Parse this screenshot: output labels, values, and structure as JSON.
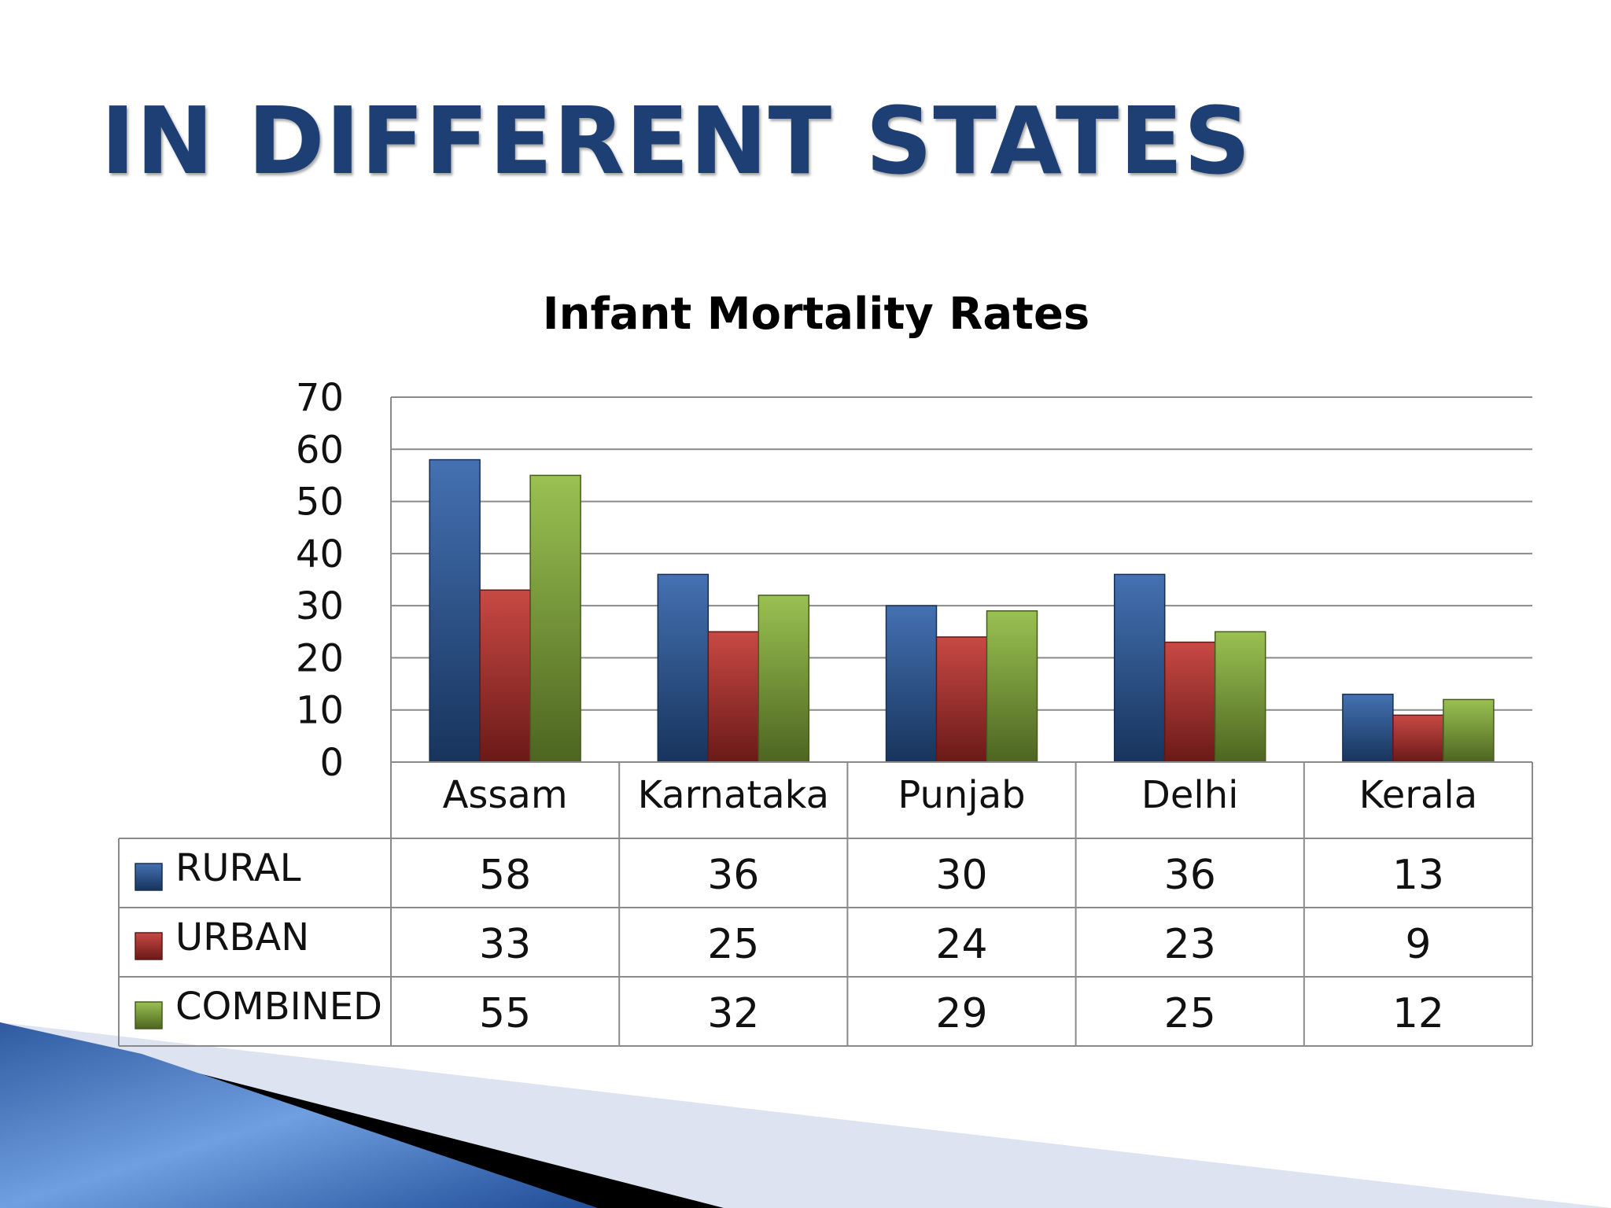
{
  "slide": {
    "title": "IN DIFFERENT STATES"
  },
  "chart_data": {
    "type": "bar",
    "title": "Infant Mortality Rates",
    "xlabel": "",
    "ylabel": "",
    "ylim": [
      0,
      70
    ],
    "yticks": [
      0,
      10,
      20,
      30,
      40,
      50,
      60,
      70
    ],
    "grid": true,
    "legend": "data-table-left",
    "categories": [
      "Assam",
      "Karnataka",
      "Punjab",
      "Delhi",
      "Kerala"
    ],
    "series": [
      {
        "name": "RURAL",
        "values": [
          58,
          36,
          30,
          36,
          13
        ],
        "color": "#2a5ea8"
      },
      {
        "name": "URBAN",
        "values": [
          33,
          25,
          24,
          23,
          9
        ],
        "color": "#c0302b"
      },
      {
        "name": "COMBINED",
        "values": [
          55,
          32,
          29,
          25,
          12
        ],
        "color": "#8cb83a"
      }
    ]
  }
}
